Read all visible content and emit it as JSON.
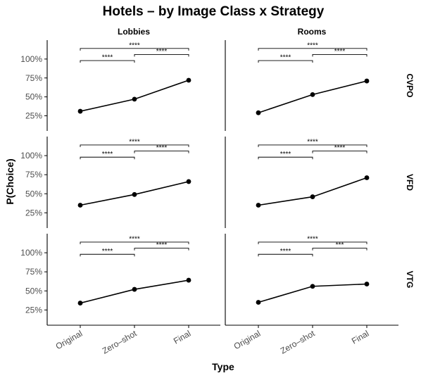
{
  "chart_data": {
    "type": "line",
    "title": "Hotels – by Image Class x Strategy",
    "xlabel": "Type",
    "ylabel": "P(Choice)",
    "categories": [
      "Original",
      "Zero–shot",
      "Final"
    ],
    "ylim": [
      0.05,
      1.25
    ],
    "yticks": [
      0.25,
      0.5,
      0.75,
      1.0
    ],
    "ytick_labels": [
      "25%",
      "50%",
      "75%",
      "100%"
    ],
    "columns": [
      "Lobbies",
      "Rooms"
    ],
    "rows": [
      "CVPO",
      "VFD",
      "VTG"
    ],
    "grid": false,
    "legend": "none",
    "panels": [
      {
        "row": "CVPO",
        "column": "Lobbies",
        "values": [
          0.31,
          0.47,
          0.72
        ],
        "comparisons": [
          {
            "from": "Original",
            "to": "Zero–shot",
            "label": "****"
          },
          {
            "from": "Original",
            "to": "Final",
            "label": "****"
          },
          {
            "from": "Zero–shot",
            "to": "Final",
            "label": "****"
          }
        ]
      },
      {
        "row": "CVPO",
        "column": "Rooms",
        "values": [
          0.29,
          0.53,
          0.71
        ],
        "comparisons": [
          {
            "from": "Original",
            "to": "Zero–shot",
            "label": "****"
          },
          {
            "from": "Original",
            "to": "Final",
            "label": "****"
          },
          {
            "from": "Zero–shot",
            "to": "Final",
            "label": "****"
          }
        ]
      },
      {
        "row": "VFD",
        "column": "Lobbies",
        "values": [
          0.35,
          0.49,
          0.66
        ],
        "comparisons": [
          {
            "from": "Original",
            "to": "Zero–shot",
            "label": "****"
          },
          {
            "from": "Original",
            "to": "Final",
            "label": "****"
          },
          {
            "from": "Zero–shot",
            "to": "Final",
            "label": "****"
          }
        ]
      },
      {
        "row": "VFD",
        "column": "Rooms",
        "values": [
          0.35,
          0.46,
          0.71
        ],
        "comparisons": [
          {
            "from": "Original",
            "to": "Zero–shot",
            "label": "****"
          },
          {
            "from": "Original",
            "to": "Final",
            "label": "****"
          },
          {
            "from": "Zero–shot",
            "to": "Final",
            "label": "****"
          }
        ]
      },
      {
        "row": "VTG",
        "column": "Lobbies",
        "values": [
          0.34,
          0.52,
          0.64
        ],
        "comparisons": [
          {
            "from": "Original",
            "to": "Zero–shot",
            "label": "****"
          },
          {
            "from": "Original",
            "to": "Final",
            "label": "****"
          },
          {
            "from": "Zero–shot",
            "to": "Final",
            "label": "****"
          }
        ]
      },
      {
        "row": "VTG",
        "column": "Rooms",
        "values": [
          0.35,
          0.56,
          0.59
        ],
        "comparisons": [
          {
            "from": "Original",
            "to": "Zero–shot",
            "label": "****"
          },
          {
            "from": "Original",
            "to": "Final",
            "label": "****"
          },
          {
            "from": "Zero–shot",
            "to": "Final",
            "label": "***"
          }
        ]
      }
    ]
  },
  "colors": {
    "line": "#000000",
    "point": "#000000",
    "axis": "#000000",
    "tick_label": "#4d4d4d"
  }
}
